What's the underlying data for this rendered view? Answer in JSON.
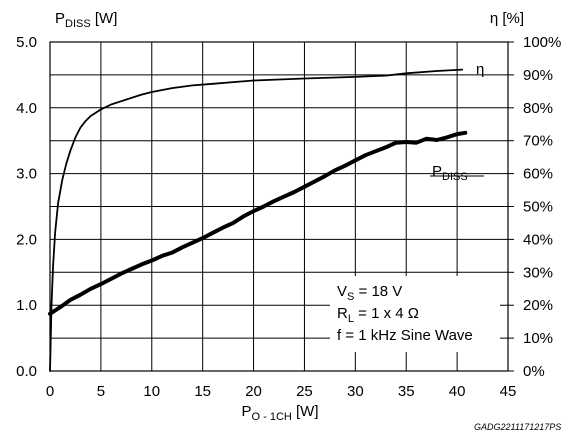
{
  "chart_data": {
    "type": "line",
    "x_axis": {
      "label_main": "P",
      "label_sub": "O - 1CH",
      "label_unit": " [W]",
      "range": [
        0,
        45
      ],
      "ticks": [
        0,
        5,
        10,
        15,
        20,
        25,
        30,
        35,
        40,
        45
      ]
    },
    "y_left": {
      "label_main": "P",
      "label_sub": "DISS",
      "label_unit": " [W]",
      "range": [
        0,
        5
      ],
      "ticks": [
        0,
        1,
        2,
        3,
        4,
        5
      ],
      "tick_labels": [
        "0.0",
        "1.0",
        "2.0",
        "3.0",
        "4.0",
        "5.0"
      ]
    },
    "y_right": {
      "label": "η [%]",
      "range": [
        0,
        100
      ],
      "ticks": [
        0,
        10,
        20,
        30,
        40,
        50,
        60,
        70,
        80,
        90,
        100
      ],
      "tick_labels": [
        "0%",
        "10%",
        "20%",
        "30%",
        "40%",
        "50%",
        "60%",
        "70%",
        "80%",
        "90%",
        "100%"
      ]
    },
    "grid": true,
    "series": [
      {
        "name": "η",
        "axis": "right",
        "line_weight": "thin",
        "points": [
          [
            0,
            0
          ],
          [
            0.15,
            20
          ],
          [
            0.3,
            32
          ],
          [
            0.5,
            42
          ],
          [
            0.8,
            51
          ],
          [
            1.2,
            58
          ],
          [
            1.6,
            63
          ],
          [
            2,
            67
          ],
          [
            2.5,
            71
          ],
          [
            3,
            74
          ],
          [
            3.5,
            76
          ],
          [
            4,
            77.5
          ],
          [
            5,
            79.5
          ],
          [
            6,
            81
          ],
          [
            7,
            82
          ],
          [
            8,
            83
          ],
          [
            9,
            84
          ],
          [
            10,
            84.8
          ],
          [
            12,
            86
          ],
          [
            14,
            86.8
          ],
          [
            16,
            87.3
          ],
          [
            18,
            87.8
          ],
          [
            20,
            88.3
          ],
          [
            25,
            88.9
          ],
          [
            30,
            89.4
          ],
          [
            33,
            89.8
          ],
          [
            35,
            90.5
          ],
          [
            38,
            91.2
          ],
          [
            40.5,
            91.6
          ]
        ]
      },
      {
        "name": "P",
        "name_sub": "DISS",
        "axis": "left",
        "line_weight": "thick",
        "points": [
          [
            0,
            0.87
          ],
          [
            0.5,
            0.92
          ],
          [
            1,
            0.97
          ],
          [
            2,
            1.08
          ],
          [
            3,
            1.16
          ],
          [
            4,
            1.25
          ],
          [
            5,
            1.32
          ],
          [
            6,
            1.4
          ],
          [
            7,
            1.48
          ],
          [
            8,
            1.55
          ],
          [
            9,
            1.62
          ],
          [
            10,
            1.68
          ],
          [
            11,
            1.75
          ],
          [
            12,
            1.8
          ],
          [
            13,
            1.88
          ],
          [
            14,
            1.95
          ],
          [
            15,
            2.02
          ],
          [
            16,
            2.1
          ],
          [
            17,
            2.18
          ],
          [
            18,
            2.25
          ],
          [
            19,
            2.35
          ],
          [
            20,
            2.43
          ],
          [
            21,
            2.5
          ],
          [
            22,
            2.58
          ],
          [
            23,
            2.65
          ],
          [
            24,
            2.72
          ],
          [
            25,
            2.8
          ],
          [
            26,
            2.88
          ],
          [
            27,
            2.96
          ],
          [
            28,
            3.05
          ],
          [
            29,
            3.12
          ],
          [
            30,
            3.2
          ],
          [
            31,
            3.28
          ],
          [
            32,
            3.34
          ],
          [
            33,
            3.4
          ],
          [
            34,
            3.47
          ],
          [
            35,
            3.48
          ],
          [
            36,
            3.47
          ],
          [
            37,
            3.53
          ],
          [
            38,
            3.51
          ],
          [
            39,
            3.55
          ],
          [
            40,
            3.6
          ],
          [
            40.8,
            3.62
          ]
        ]
      }
    ],
    "annotations": [
      {
        "main": "V",
        "sub": "S",
        "rest": " = 18 V"
      },
      {
        "main": "R",
        "sub": "L",
        "rest": " = 1 x 4 Ω"
      },
      {
        "main": "f = 1 kHz Sine Wave",
        "sub": "",
        "rest": ""
      }
    ],
    "footer": "GADG2211171217PS"
  }
}
